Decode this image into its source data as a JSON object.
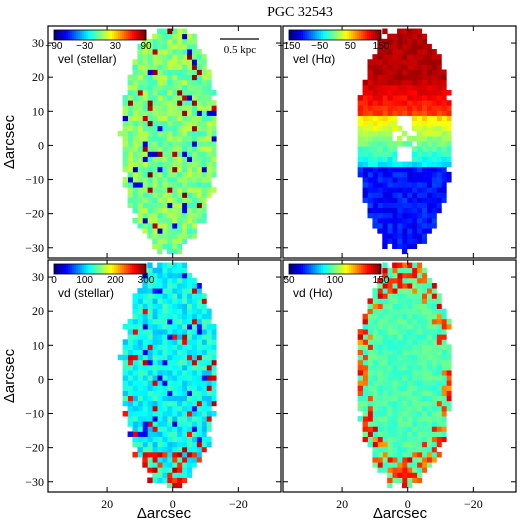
{
  "figure": {
    "title": "PGC 32543",
    "scalebar_label": "0.5 kpc",
    "ylabel": "Δarcsec",
    "xlabel": "Δarcsec"
  },
  "chart_data": [
    {
      "type": "heatmap",
      "title": "vel (stellar)",
      "colorbar": {
        "range": [
          -90,
          90
        ],
        "ticks": [
          "-90",
          "-30",
          "30",
          "90"
        ]
      },
      "xlim": [
        38,
        -33
      ],
      "ylim": [
        -33,
        35
      ],
      "xticks": [
        20,
        0,
        -20
      ],
      "yticks": [
        30,
        20,
        10,
        0,
        -10,
        -20,
        -30
      ],
      "pattern": "noisy-near-zero",
      "xlabel": "",
      "ylabel": "Δarcsec"
    },
    {
      "type": "heatmap",
      "title": "vel (Hα)",
      "colorbar": {
        "range": [
          -150,
          150
        ],
        "ticks": [
          "-150",
          "-50",
          "50",
          "150"
        ]
      },
      "xlim": [
        38,
        -33
      ],
      "ylim": [
        -33,
        35
      ],
      "xticks": [
        20,
        0,
        -20
      ],
      "yticks": [
        30,
        20,
        10,
        0,
        -10,
        -20,
        -30
      ],
      "pattern": "rotation-gradient",
      "xlabel": "",
      "ylabel": ""
    },
    {
      "type": "heatmap",
      "title": "vd (stellar)",
      "colorbar": {
        "range": [
          0,
          300
        ],
        "ticks": [
          "0",
          "100",
          "200",
          "300"
        ]
      },
      "xlim": [
        38,
        -33
      ],
      "ylim": [
        -33,
        35
      ],
      "xticks": [
        20,
        0,
        -20
      ],
      "yticks": [
        30,
        20,
        10,
        0,
        -10,
        -20,
        -30
      ],
      "pattern": "noisy-dispersion",
      "xlabel": "Δarcsec",
      "ylabel": "Δarcsec"
    },
    {
      "type": "heatmap",
      "title": "vd (Hα)",
      "colorbar": {
        "range": [
          50,
          150
        ],
        "ticks": [
          "50",
          "100",
          "150"
        ]
      },
      "xlim": [
        38,
        -33
      ],
      "ylim": [
        -33,
        35
      ],
      "xticks": [
        20,
        0,
        -20
      ],
      "yticks": [
        30,
        20,
        10,
        0,
        -10,
        -20,
        -30
      ],
      "pattern": "edge-high-dispersion",
      "xlabel": "Δarcsec",
      "ylabel": ""
    }
  ]
}
